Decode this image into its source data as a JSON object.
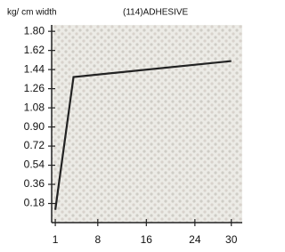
{
  "chart_data": {
    "type": "line",
    "title": "(114)ADHESIVE",
    "y_label": "kg/ cm width",
    "x": [
      1,
      4,
      30
    ],
    "series": [
      {
        "name": "(114)ADHESIVE",
        "color": "#222222",
        "values": [
          0.12,
          1.37,
          1.52
        ]
      }
    ],
    "xlim": [
      0.4,
      31.8
    ],
    "xticks": [
      1,
      8,
      16,
      24,
      30
    ],
    "ylim": [
      0,
      1.86
    ],
    "yticks": [
      {
        "value": 0.18,
        "label": "0.18"
      },
      {
        "value": 0.36,
        "label": "0.36"
      },
      {
        "value": 0.54,
        "label": "0.54"
      },
      {
        "value": 0.72,
        "label": "0.72"
      },
      {
        "value": 0.9,
        "label": "0.90"
      },
      {
        "value": 1.08,
        "label": "1.08"
      },
      {
        "value": 1.26,
        "label": "1.26"
      },
      {
        "value": 1.44,
        "label": "1.44"
      },
      {
        "value": 1.62,
        "label": "1.62"
      },
      {
        "value": 1.8,
        "label": "1.80"
      }
    ]
  }
}
